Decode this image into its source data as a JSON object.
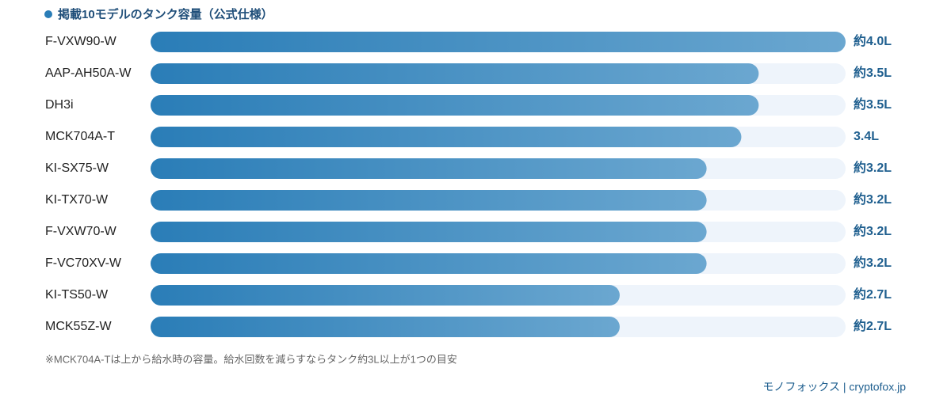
{
  "chart_data": {
    "type": "bar",
    "orientation": "horizontal",
    "title": "掲載10モデルのタンク容量（公式仕様）",
    "categories": [
      "F-VXW90-W",
      "AAP-AH50A-W",
      "DH3i",
      "MCK704A-T",
      "KI-SX75-W",
      "KI-TX70-W",
      "F-VXW70-W",
      "F-VC70XV-W",
      "KI-TS50-W",
      "MCK55Z-W"
    ],
    "values": [
      4.0,
      3.5,
      3.5,
      3.4,
      3.2,
      3.2,
      3.2,
      3.2,
      2.7,
      2.7
    ],
    "value_labels": [
      "約4.0L",
      "約3.5L",
      "約3.5L",
      "3.4L",
      "約3.2L",
      "約3.2L",
      "約3.2L",
      "約3.2L",
      "約2.7L",
      "約2.7L"
    ],
    "xlim": [
      0,
      4.0
    ],
    "color": "#2a7db7",
    "color_end": "#6ba7d0",
    "track_color": "#eef4fb",
    "footnote": "※MCK704A-Tは上から給水時の容量。給水回数を減らすならタンク約3L以上が1つの目安",
    "source": "モノフォックス | cryptofox.jp"
  }
}
